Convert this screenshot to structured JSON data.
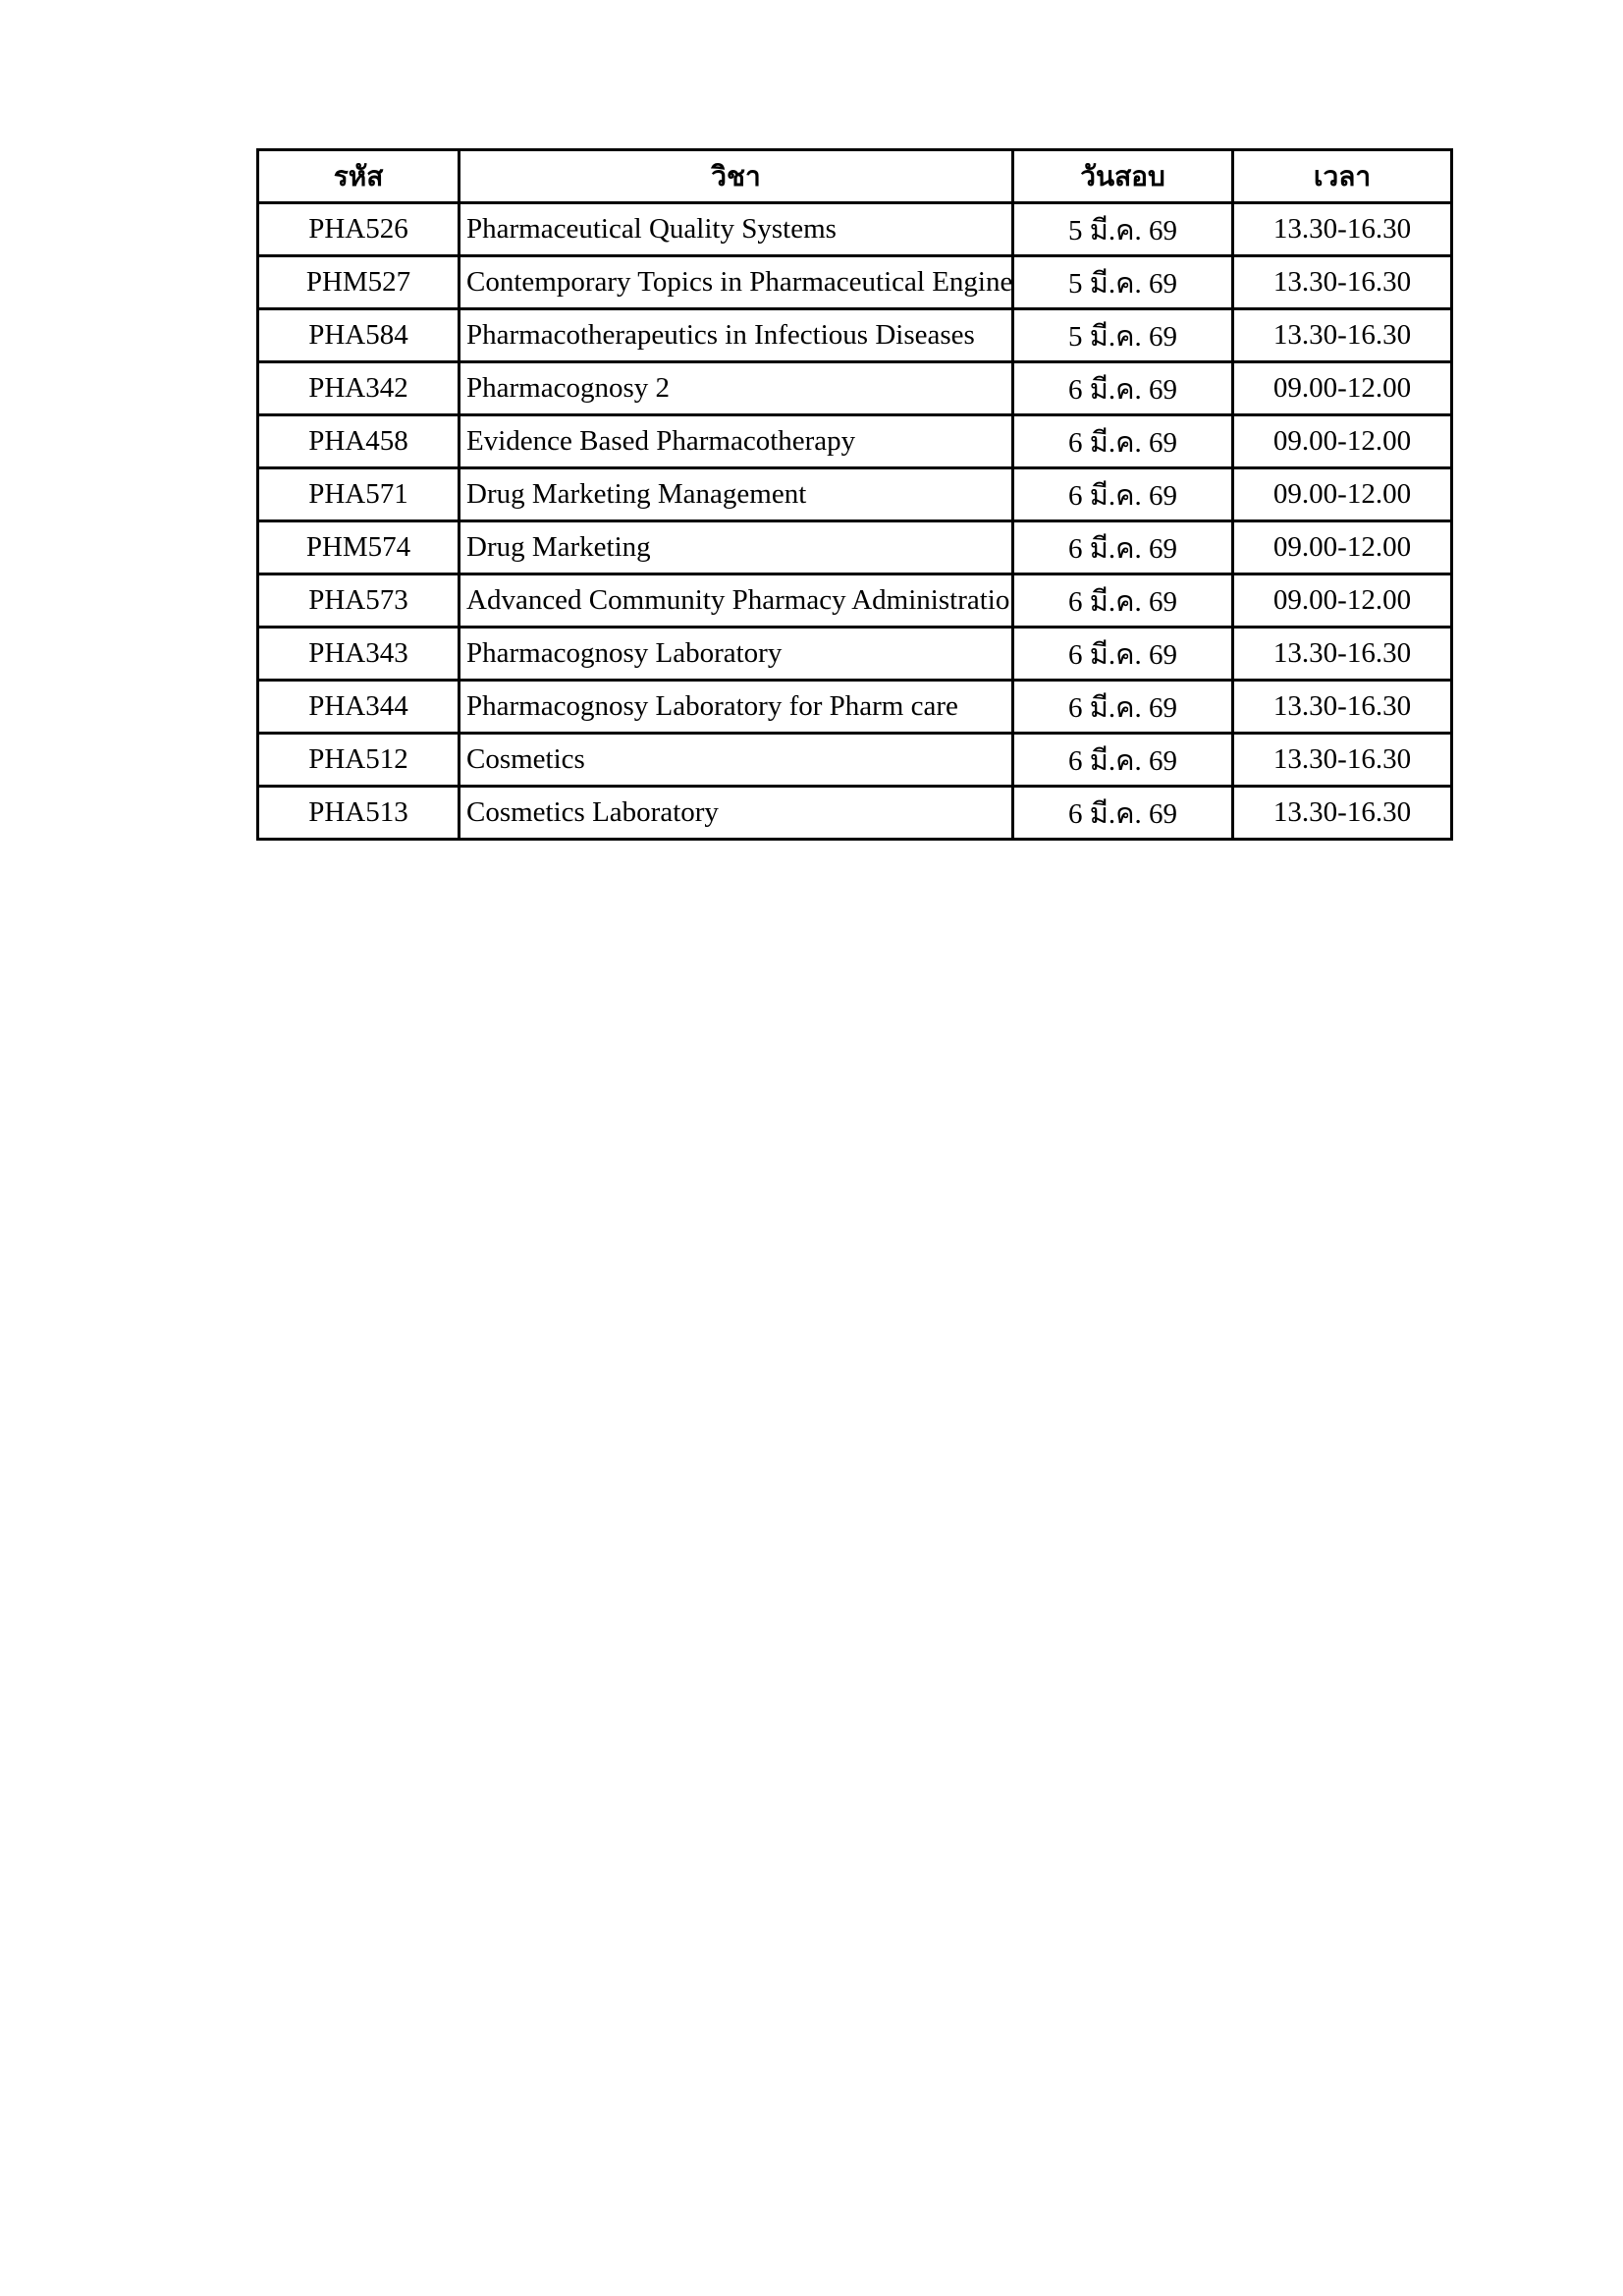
{
  "table": {
    "header": [
      "รหัส",
      "วิชา",
      "วันสอบ",
      "เวลา"
    ],
    "rows": [
      [
        "PHA526",
        "Pharmaceutical Quality Systems",
        "5 มี.ค. 69",
        "13.30-16.30"
      ],
      [
        "PHM527",
        "Contemporary Topics in Pharmaceutical Engine",
        "5 มี.ค. 69",
        "13.30-16.30"
      ],
      [
        "PHA584",
        "Pharmacotherapeutics in Infectious Diseases",
        "5 มี.ค. 69",
        "13.30-16.30"
      ],
      [
        "PHA342",
        "Pharmacognosy 2",
        "6 มี.ค. 69",
        "09.00-12.00"
      ],
      [
        "PHA458",
        "Evidence Based Pharmacotherapy",
        "6 มี.ค. 69",
        "09.00-12.00"
      ],
      [
        "PHA571",
        "Drug Marketing Management",
        "6 มี.ค. 69",
        "09.00-12.00"
      ],
      [
        "PHM574",
        "Drug Marketing",
        "6 มี.ค. 69",
        "09.00-12.00"
      ],
      [
        "PHA573",
        "Advanced Community Pharmacy Administratio",
        "6 มี.ค. 69",
        "09.00-12.00"
      ],
      [
        "PHA343",
        "Pharmacognosy Laboratory",
        "6 มี.ค. 69",
        "13.30-16.30"
      ],
      [
        "PHA344",
        "Pharmacognosy Laboratory for Pharm care",
        "6 มี.ค. 69",
        "13.30-16.30"
      ],
      [
        "PHA512",
        "Cosmetics",
        "6 มี.ค. 69",
        "13.30-16.30"
      ],
      [
        "PHA513",
        "Cosmetics Laboratory",
        "6 มี.ค. 69",
        "13.30-16.30"
      ]
    ]
  }
}
